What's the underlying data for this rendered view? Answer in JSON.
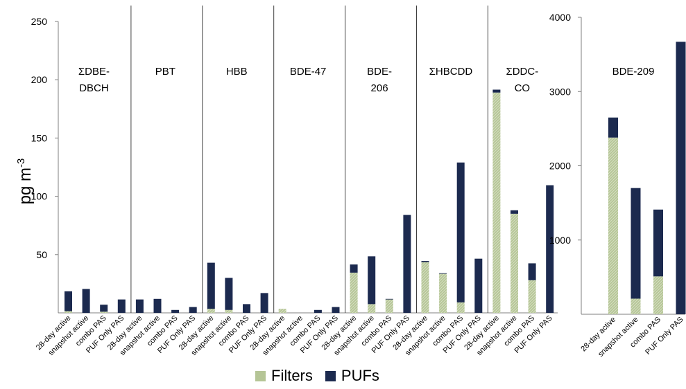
{
  "chart_data": [
    {
      "type": "bar",
      "stacked": true,
      "ylabel": "pg m",
      "ylabel_superscript": "-3",
      "ylim": [
        0,
        250
      ],
      "yticks": [
        50,
        100,
        150,
        200,
        250
      ],
      "categories": [
        "28-day active",
        "snapshot active",
        "combo PAS",
        "PUF Only PAS"
      ],
      "groups": [
        {
          "label_lines": [
            "ΣDBE-",
            "DBCH"
          ],
          "series": [
            {
              "name": "Filters",
              "values": [
                1.5,
                0,
                1,
                0
              ]
            },
            {
              "name": "PUFs",
              "values": [
                17,
                20.5,
                6,
                11.5
              ]
            }
          ]
        },
        {
          "label_lines": [
            "PBT"
          ],
          "series": [
            {
              "name": "Filters",
              "values": [
                0,
                0,
                0,
                0
              ]
            },
            {
              "name": "PUFs",
              "values": [
                11.5,
                12,
                2.5,
                5
              ]
            }
          ]
        },
        {
          "label_lines": [
            "HBB"
          ],
          "series": [
            {
              "name": "Filters",
              "values": [
                3.5,
                2.5,
                0,
                0
              ]
            },
            {
              "name": "PUFs",
              "values": [
                39.5,
                27.5,
                7.5,
                17
              ]
            }
          ]
        },
        {
          "label_lines": [
            "BDE-47"
          ],
          "series": [
            {
              "name": "Filters",
              "values": [
                3.5,
                0,
                0,
                0
              ]
            },
            {
              "name": "PUFs",
              "values": [
                0,
                0,
                2.5,
                5
              ]
            }
          ]
        },
        {
          "label_lines": [
            "BDE-",
            "206"
          ],
          "series": [
            {
              "name": "Filters",
              "values": [
                34.5,
                7.5,
                11.5,
                0
              ]
            },
            {
              "name": "PUFs",
              "values": [
                7,
                41,
                0.5,
                84
              ]
            }
          ]
        },
        {
          "label_lines": [
            "ΣHBCDD"
          ],
          "series": [
            {
              "name": "Filters",
              "values": [
                43.5,
                33.5,
                9,
                0
              ]
            },
            {
              "name": "PUFs",
              "values": [
                1,
                0.5,
                120,
                46.5
              ]
            }
          ]
        },
        {
          "label_lines": [
            "ΣDDC-",
            "CO"
          ],
          "series": [
            {
              "name": "Filters",
              "values": [
                189,
                85,
                28,
                0
              ]
            },
            {
              "name": "PUFs",
              "values": [
                2.5,
                3,
                14.5,
                109.5
              ]
            }
          ]
        }
      ]
    },
    {
      "type": "bar",
      "stacked": true,
      "ylim": [
        0,
        4000
      ],
      "yticks": [
        1000,
        2000,
        3000,
        4000
      ],
      "categories": [
        "28-day active",
        "snapshot active",
        "combo PAS",
        "PUF Only PAS"
      ],
      "groups": [
        {
          "label_lines": [
            "BDE-209"
          ],
          "series": [
            {
              "name": "Filters",
              "values": [
                2380,
                210,
                510,
                0
              ]
            },
            {
              "name": "PUFs",
              "values": [
                270,
                1490,
                900,
                3670
              ]
            }
          ]
        }
      ]
    }
  ],
  "legend": {
    "filters": "Filters",
    "pufs": "PUFs"
  },
  "colors": {
    "filters": "#b5c596",
    "pufs": "#1c2a4f",
    "axis": "#7f7f7f",
    "divider": "#3f3f3f"
  }
}
